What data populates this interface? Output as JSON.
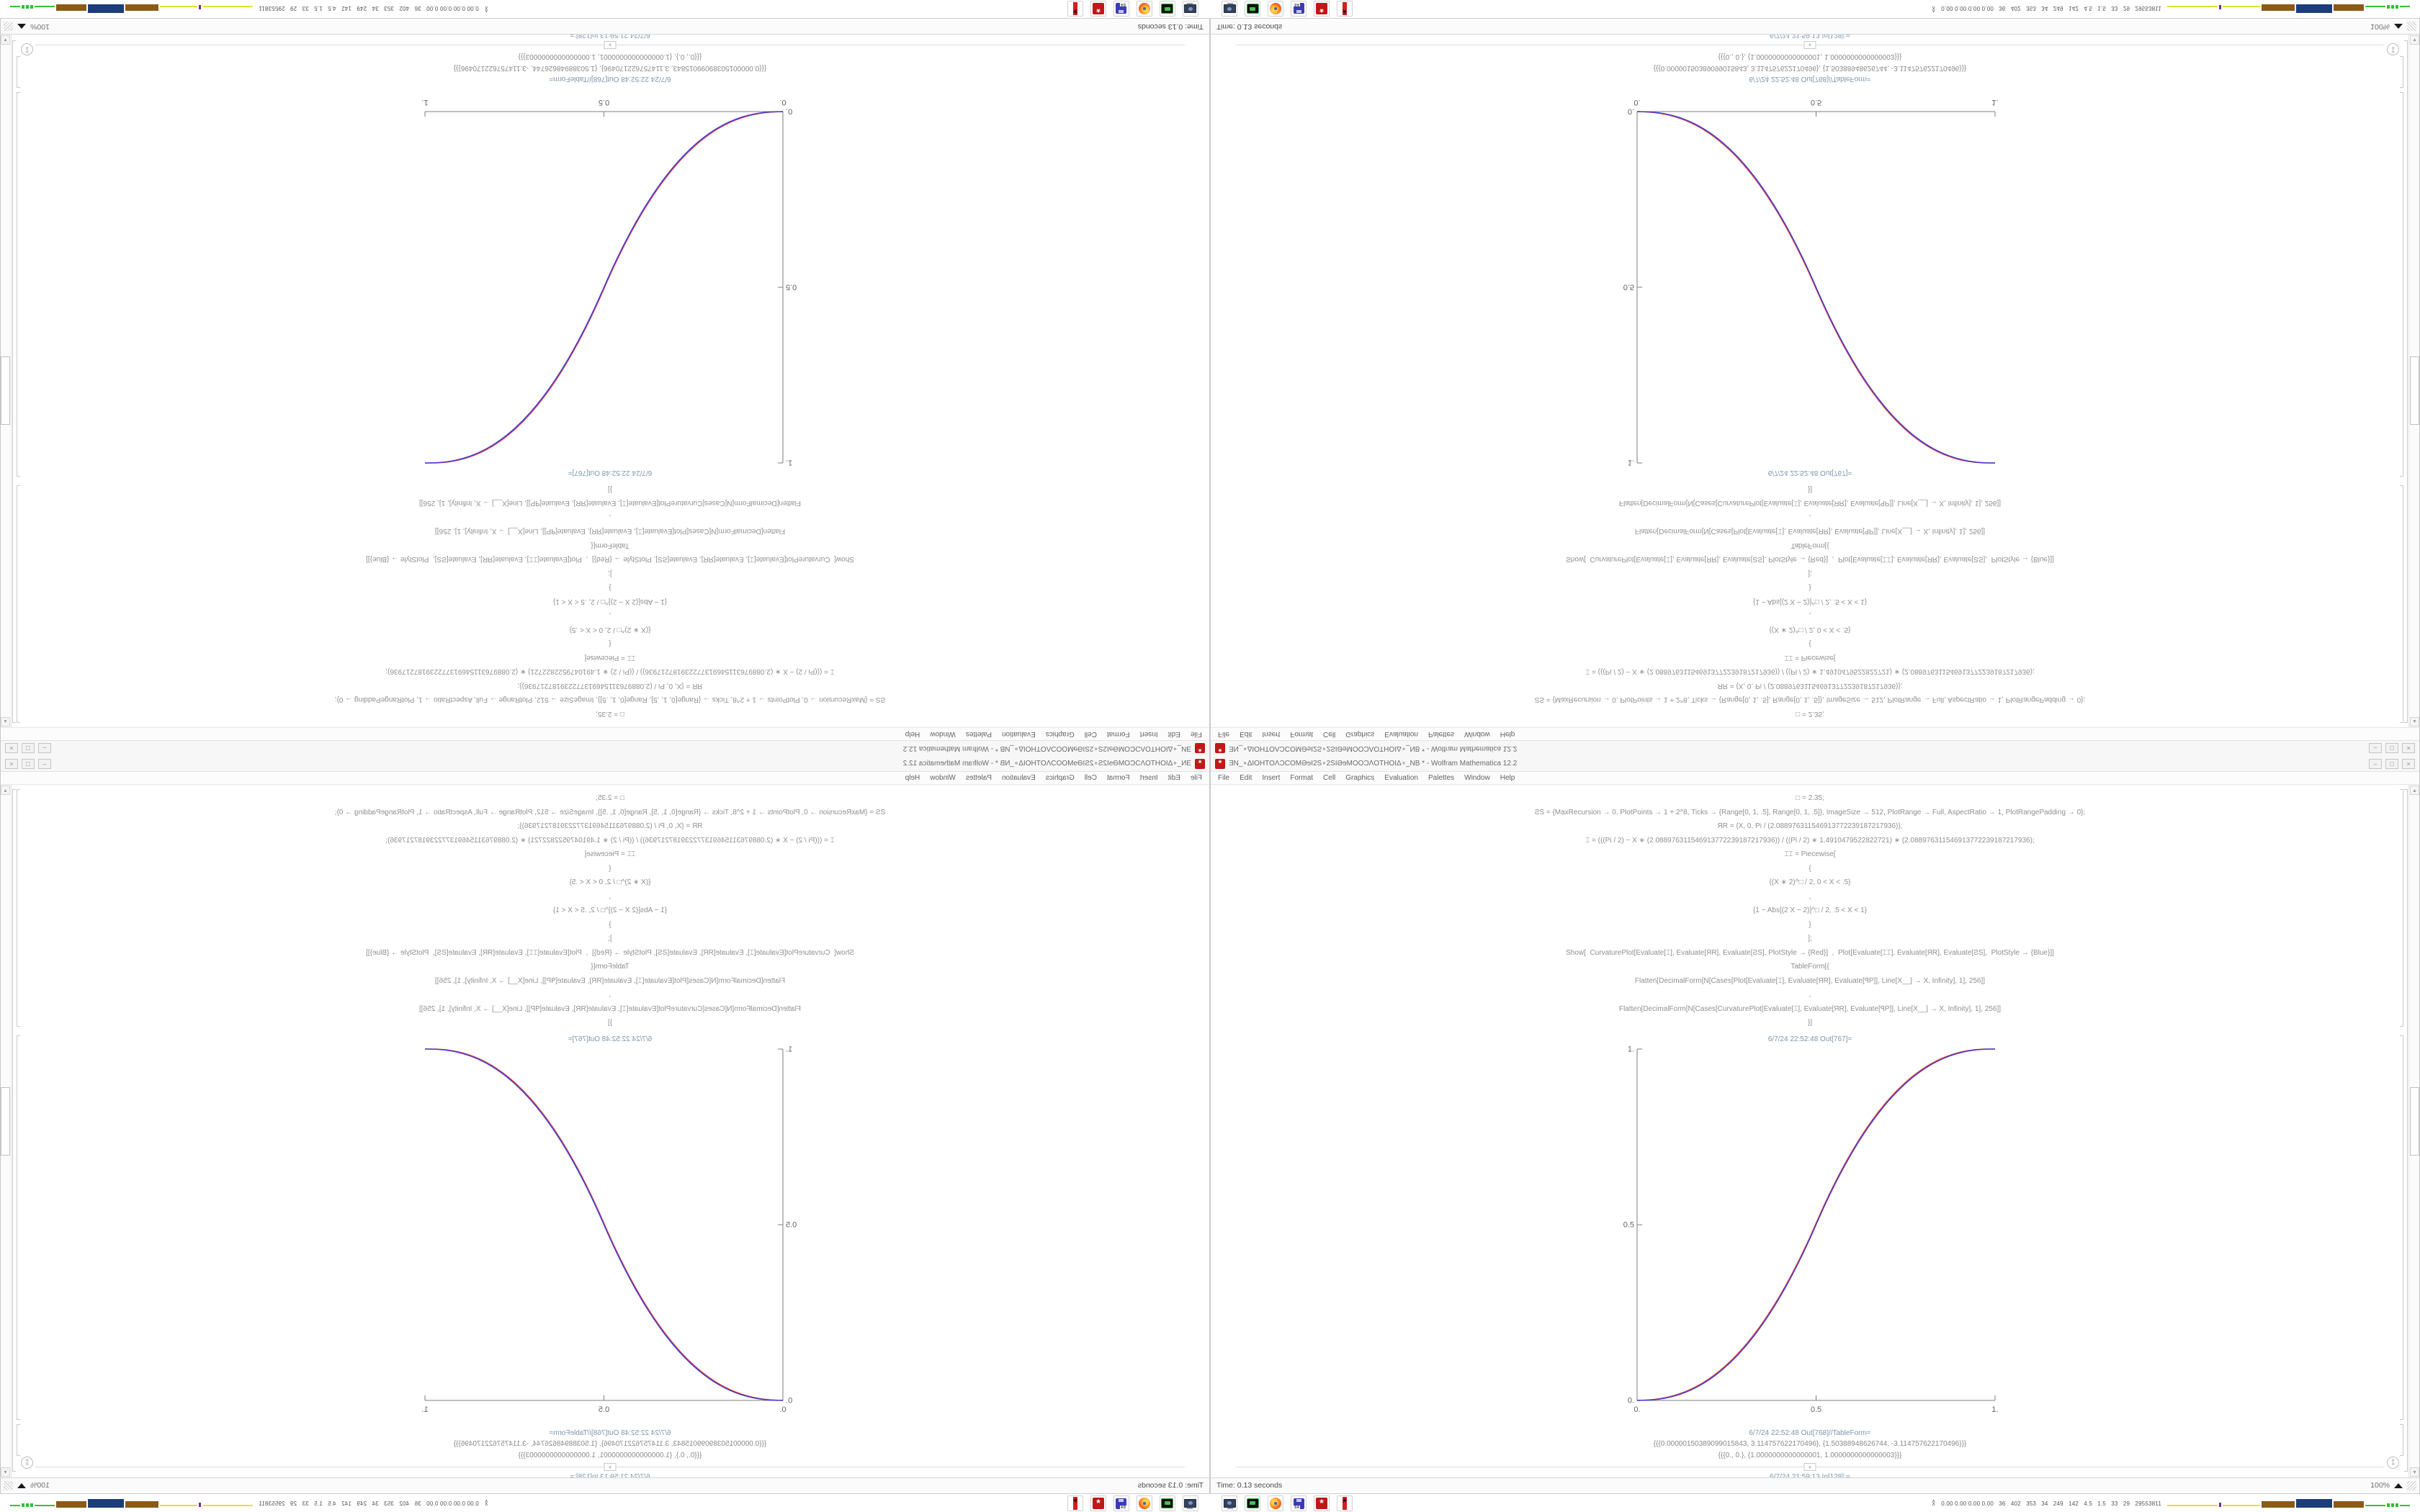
{
  "screen": {
    "grid": "2x2 mirrored copies of one 1680x1050 desktop screenshot",
    "tiles": [
      {
        "pos": "top-left",
        "flip": "both"
      },
      {
        "pos": "top-right",
        "flip": "vertical"
      },
      {
        "pos": "bottom-left",
        "flip": "horizontal"
      },
      {
        "pos": "bottom-right",
        "flip": "none"
      }
    ]
  },
  "window": {
    "title": "ƎN_∘ΔIOHTOΛƆCOMƏɘI2S∘2SIƏɘMOOƆΛOTHOIΔ∘_NB * - Wolfram Mathematica 12.2",
    "menu": [
      "File",
      "Edit",
      "Insert",
      "Format",
      "Cell",
      "Graphics",
      "Evaluation",
      "Palettes",
      "Window",
      "Help"
    ],
    "controls": [
      "–",
      "□",
      "×"
    ],
    "status_left": "Time: 0.13 seconds",
    "zoom_level": "100%"
  },
  "notebook": {
    "input_lines": [
      "□ = 2.35;",
      "ƧS = {MaxRecursion → 0, PlotPoints → 1 + 2^8, Ticks → {Range[0, 1, .5], Range[0, 1, .5]}, ImageSize → 512, PlotRange → Full, AspectRatio → 1, PlotRangePadding → 0};",
      "ЯR = {X, 0, Pi / (2.088976311546913772239187217936)};",
      "⌶ = (((Pi / 2) − X ∗ (2.088976311546913772239187217936)) / ((Pi / 2) ∗ 1.4910479522822721) ∗ (2.088976311546913772239187217936);",
      "⌶⌶ = Piecewise[",
      "{",
      "{(X ∗ 2)^□ / 2, 0 < X < .5}",
      ",",
      "{1 − Abs[(2 X − 2)]^□ / 2, .5 < X < 1}",
      "}",
      "];",
      "Show[  CurvaturePlot[Evaluate[⌶], Evaluate[ЯR], Evaluate[ƧS], PlotStyle → {Red}]  ,  Plot[Evaluate[⌶⌶], Evaluate[ЯR], Evaluate[ƧS],  PlotStyle → {Blue}]]",
      "TableForm[{",
      "Flatten[DecimalForm[N[Cases[Plot[Evaluate[⌶], Evaluate[ЯR], Evaluate[ꟼP]], Line[X__] → X, Infinity], 1], 256]]",
      ",",
      "Flatten[DecimalForm[N[Cases[CurvaturePlot[Evaluate[⌶], Evaluate[ЯR], Evaluate[ꟼP]], Line[X__] → X, Infinity], 1], 256]]",
      "}]"
    ],
    "out_plot_label": "6/7/24 22:52:48 Out[767]=",
    "out_table_label": "6/7/24 22:52:48 Out[768]//TableForm=",
    "table_rows": [
      "{{{0.00000150389099015843, 3.114757622170496}, {1.50388948626744, -3.114757622170496}}}",
      "{{{0., 0.}, {1.0000000000000001, 1.0000000000000003}}}"
    ],
    "add_cell_glyph": "+",
    "next_in_label": "6/7/24 21:59:13 In[128]:="
  },
  "chart_data": {
    "type": "line",
    "title": "",
    "xlabel": "",
    "ylabel": "",
    "xlim": [
      0,
      1
    ],
    "ylim": [
      0,
      1
    ],
    "x_ticks": [
      "0.",
      "0.5",
      "1."
    ],
    "y_ticks": [
      "0.",
      "0.5",
      "1."
    ],
    "grid": false,
    "legend": "none",
    "function": "piecewise smoothstep: y=(2x)^2.35/2 for 0<x<.5 ; y=1-Abs[2x-2]^2.35/2 for .5<x<1",
    "exponent": 2.35,
    "x": [
      0,
      0.1,
      0.2,
      0.3,
      0.4,
      0.5,
      0.6,
      0.7,
      0.8,
      0.9,
      1
    ],
    "series": [
      {
        "name": "CurvaturePlot[⌶] (Red)",
        "color": "#dd3a3a",
        "offset_amp": 0.0045,
        "values": [
          0,
          0.013,
          0.061,
          0.155,
          0.301,
          0.504,
          0.709,
          0.854,
          0.945,
          0.99,
          1
        ]
      },
      {
        "name": "Plot[⌶⌶] (Blue)",
        "color": "#3a3add",
        "offset_amp": 0,
        "values": [
          0,
          0.0114,
          0.058,
          0.1505,
          0.296,
          0.5,
          0.704,
          0.8495,
          0.942,
          0.9886,
          1
        ]
      }
    ],
    "axis_color": "#7d7d7d",
    "tick_label_color": "#636363"
  },
  "taskbar": {
    "launchers": [
      {
        "name": "display-settings-icon",
        "type": "display"
      },
      {
        "name": "terminal-icon",
        "type": "terminal"
      },
      {
        "name": "firefox-icon",
        "type": "firefox"
      },
      {
        "name": "floppy-64-icon",
        "type": "floppy",
        "label": "64"
      },
      {
        "name": "mathematica-icon",
        "type": "mma",
        "glyph": "*"
      },
      {
        "name": "mathematica-alt-icon",
        "type": "mma2",
        "glyph": "*"
      }
    ],
    "monitor_values": "0.00 0.00 0.00 0.00   36   402   353   34   249   142   4.5   1.5   33   29   29553811",
    "sparkline": [
      {
        "kind": "line",
        "color": "#e3e332",
        "w": 70,
        "h": 2
      },
      {
        "kind": "dot",
        "color": "#7a2a8a",
        "w": 3,
        "h": 6
      },
      {
        "kind": "line",
        "color": "#e3e332",
        "w": 52,
        "h": 2
      },
      {
        "kind": "block",
        "color": "#8a5a16",
        "w": 46,
        "h": 9
      },
      {
        "kind": "block",
        "color": "#1d3d7a",
        "w": 50,
        "h": 12
      },
      {
        "kind": "block",
        "color": "#8a5a16",
        "w": 42,
        "h": 9
      },
      {
        "kind": "line",
        "color": "#35c035",
        "w": 28,
        "h": 2
      },
      {
        "kind": "dot",
        "color": "#35c035",
        "w": 4,
        "h": 5
      },
      {
        "kind": "dot",
        "color": "#35c035",
        "w": 4,
        "h": 5
      },
      {
        "kind": "dot",
        "color": "#35c035",
        "w": 4,
        "h": 5
      },
      {
        "kind": "line",
        "color": "#35c035",
        "w": 14,
        "h": 2
      }
    ]
  },
  "colors": {
    "red_curve": "#dd3a3a",
    "blue_curve": "#3a3add",
    "cell_label_blue": "#7d95ab",
    "code_gray": "#8f8f8f",
    "mathematica_red": "#c01818"
  }
}
